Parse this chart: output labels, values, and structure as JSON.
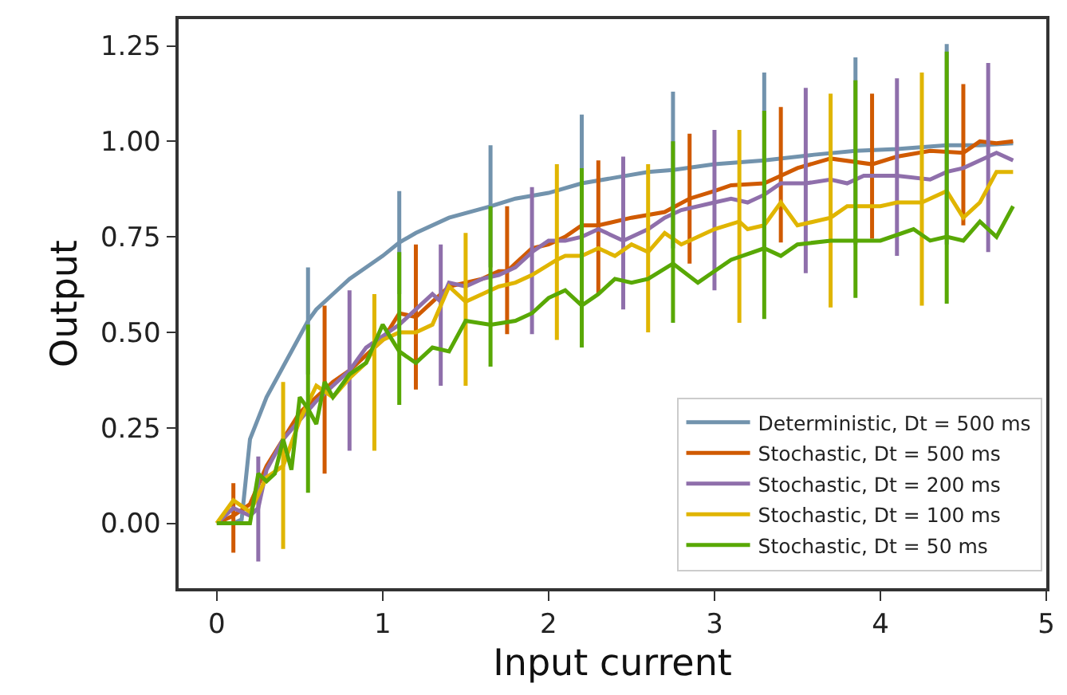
{
  "chart_data": {
    "type": "line",
    "xlabel": "Input current",
    "ylabel": "Output",
    "xlim": [
      -0.23,
      5.0
    ],
    "xticks": [
      0,
      1,
      2,
      3,
      4,
      5
    ],
    "ylim": [
      -0.17,
      1.32
    ],
    "yticks": [
      {
        "value": 0,
        "label": "0.00"
      },
      {
        "value": 0.25,
        "label": "0.25"
      },
      {
        "value": 0.5,
        "label": "0.50"
      },
      {
        "value": 0.75,
        "label": "0.75"
      },
      {
        "value": 1,
        "label": "1.00"
      },
      {
        "value": 1.25,
        "label": "1.25"
      }
    ],
    "legend": "bottom right",
    "marker": "none",
    "line_style": "solid",
    "series": [
      {
        "name": "Deterministic, Dt = 500 ms",
        "color": "#7293ad",
        "x": [
          0,
          0.1,
          0.15,
          0.2,
          0.3,
          0.4,
          0.5,
          0.55,
          0.6,
          0.7,
          0.8,
          0.9,
          1.0,
          1.1,
          1.2,
          1.4,
          1.65,
          1.8,
          2.0,
          2.2,
          2.4,
          2.6,
          2.75,
          3.0,
          3.3,
          3.6,
          3.85,
          4.1,
          4.4,
          4.6,
          4.8
        ],
        "values": [
          0,
          0,
          0.01,
          0.22,
          0.33,
          0.41,
          0.49,
          0.53,
          0.56,
          0.6,
          0.64,
          0.67,
          0.7,
          0.735,
          0.76,
          0.8,
          0.83,
          0.85,
          0.865,
          0.89,
          0.905,
          0.92,
          0.925,
          0.94,
          0.95,
          0.965,
          0.975,
          0.98,
          0.99,
          0.99,
          0.995
        ],
        "errors": [
          null,
          null,
          null,
          null,
          null,
          null,
          null,
          [
            0.39,
            0.67
          ],
          null,
          null,
          null,
          null,
          null,
          [
            0.6,
            0.87
          ],
          null,
          null,
          [
            0.67,
            0.99
          ],
          null,
          null,
          [
            0.68,
            1.07
          ],
          null,
          null,
          [
            0.72,
            1.13
          ],
          null,
          [
            0.72,
            1.18
          ],
          null,
          [
            0.73,
            1.22
          ],
          null,
          [
            0.73,
            1.255
          ],
          null,
          null
        ]
      },
      {
        "name": "Stochastic, Dt = 500 ms",
        "color": "#d05a00",
        "x": [
          0,
          0.1,
          0.2,
          0.3,
          0.4,
          0.5,
          0.6,
          0.65,
          0.7,
          0.8,
          0.9,
          1.0,
          1.1,
          1.2,
          1.3,
          1.4,
          1.5,
          1.6,
          1.7,
          1.75,
          1.8,
          1.9,
          2.0,
          2.1,
          2.2,
          2.3,
          2.5,
          2.7,
          2.85,
          3.0,
          3.1,
          3.3,
          3.4,
          3.5,
          3.7,
          3.95,
          4.1,
          4.3,
          4.5,
          4.6,
          4.7,
          4.8
        ],
        "values": [
          0,
          0.02,
          0.05,
          0.15,
          0.22,
          0.29,
          0.33,
          0.35,
          0.37,
          0.4,
          0.44,
          0.48,
          0.55,
          0.54,
          0.58,
          0.62,
          0.63,
          0.64,
          0.66,
          0.66,
          0.68,
          0.72,
          0.73,
          0.75,
          0.78,
          0.78,
          0.8,
          0.815,
          0.85,
          0.87,
          0.885,
          0.89,
          0.91,
          0.93,
          0.955,
          0.94,
          0.96,
          0.975,
          0.97,
          1.0,
          0.995,
          1.0
        ],
        "errors": [
          null,
          [
            -0.077,
            0.105
          ],
          null,
          null,
          null,
          null,
          null,
          [
            0.13,
            0.57
          ],
          null,
          null,
          null,
          null,
          null,
          [
            0.35,
            0.73
          ],
          null,
          null,
          null,
          null,
          null,
          [
            0.495,
            0.83
          ],
          null,
          null,
          null,
          null,
          null,
          [
            0.6,
            0.95
          ],
          null,
          null,
          [
            0.68,
            1.02
          ],
          null,
          null,
          null,
          [
            0.735,
            1.09
          ],
          null,
          null,
          [
            0.745,
            1.125
          ],
          null,
          null,
          [
            0.78,
            1.15
          ],
          null,
          null,
          null
        ]
      },
      {
        "name": "Stochastic, Dt = 200 ms",
        "color": "#8f6fab",
        "x": [
          0,
          0.1,
          0.2,
          0.25,
          0.3,
          0.4,
          0.5,
          0.6,
          0.7,
          0.8,
          0.9,
          1.0,
          1.1,
          1.2,
          1.3,
          1.35,
          1.4,
          1.5,
          1.6,
          1.7,
          1.8,
          1.9,
          2.0,
          2.1,
          2.2,
          2.3,
          2.45,
          2.6,
          2.7,
          2.8,
          3.0,
          3.1,
          3.2,
          3.3,
          3.4,
          3.55,
          3.7,
          3.8,
          3.9,
          4.1,
          4.3,
          4.4,
          4.5,
          4.65,
          4.7,
          4.8
        ],
        "values": [
          0,
          0.04,
          0.02,
          0.04,
          0.14,
          0.22,
          0.27,
          0.32,
          0.36,
          0.4,
          0.46,
          0.49,
          0.52,
          0.56,
          0.6,
          0.58,
          0.63,
          0.62,
          0.64,
          0.65,
          0.67,
          0.71,
          0.74,
          0.74,
          0.75,
          0.77,
          0.74,
          0.77,
          0.8,
          0.82,
          0.84,
          0.85,
          0.84,
          0.86,
          0.89,
          0.89,
          0.9,
          0.89,
          0.91,
          0.91,
          0.9,
          0.92,
          0.93,
          0.96,
          0.97,
          0.95
        ],
        "errors": [
          null,
          null,
          null,
          [
            -0.1,
            0.175
          ],
          null,
          null,
          null,
          null,
          null,
          [
            0.19,
            0.61
          ],
          null,
          null,
          null,
          null,
          null,
          [
            0.36,
            0.73
          ],
          null,
          null,
          null,
          null,
          null,
          [
            0.495,
            0.88
          ],
          null,
          null,
          null,
          null,
          [
            0.56,
            0.96
          ],
          null,
          null,
          null,
          [
            0.61,
            1.03
          ],
          null,
          null,
          null,
          null,
          [
            0.655,
            1.14
          ],
          null,
          null,
          null,
          [
            0.7,
            1.165
          ],
          null,
          null,
          null,
          [
            0.71,
            1.205
          ],
          null,
          null
        ]
      },
      {
        "name": "Stochastic, Dt = 100 ms",
        "color": "#e0b500",
        "x": [
          0,
          0.1,
          0.2,
          0.3,
          0.4,
          0.5,
          0.6,
          0.7,
          0.8,
          0.9,
          0.95,
          1.0,
          1.1,
          1.2,
          1.3,
          1.4,
          1.5,
          1.6,
          1.7,
          1.8,
          1.9,
          2.05,
          2.1,
          2.2,
          2.3,
          2.4,
          2.5,
          2.6,
          2.7,
          2.8,
          3.0,
          3.15,
          3.2,
          3.3,
          3.4,
          3.5,
          3.7,
          3.8,
          4.0,
          4.1,
          4.25,
          4.4,
          4.5,
          4.6,
          4.7,
          4.8
        ],
        "values": [
          0,
          0.06,
          0.03,
          0.12,
          0.15,
          0.27,
          0.36,
          0.33,
          0.38,
          0.42,
          0.46,
          0.48,
          0.5,
          0.5,
          0.52,
          0.62,
          0.58,
          0.6,
          0.62,
          0.63,
          0.65,
          0.69,
          0.7,
          0.7,
          0.72,
          0.7,
          0.73,
          0.71,
          0.76,
          0.73,
          0.77,
          0.79,
          0.77,
          0.78,
          0.84,
          0.78,
          0.8,
          0.83,
          0.83,
          0.84,
          0.84,
          0.87,
          0.8,
          0.84,
          0.92,
          0.92
        ],
        "errors": [
          null,
          null,
          null,
          null,
          [
            -0.067,
            0.37
          ],
          null,
          null,
          null,
          null,
          null,
          [
            0.19,
            0.6
          ],
          null,
          null,
          null,
          null,
          null,
          [
            0.36,
            0.76
          ],
          null,
          null,
          null,
          null,
          [
            0.48,
            0.94
          ],
          null,
          null,
          null,
          null,
          null,
          [
            0.5,
            0.94
          ],
          null,
          null,
          null,
          [
            0.525,
            1.03
          ],
          null,
          null,
          null,
          null,
          [
            0.565,
            1.125
          ],
          null,
          null,
          null,
          [
            0.57,
            1.18
          ],
          null,
          null,
          null,
          null,
          null
        ]
      },
      {
        "name": "Stochastic, Dt = 50 ms",
        "color": "#58a805",
        "x": [
          0,
          0.1,
          0.2,
          0.25,
          0.3,
          0.35,
          0.4,
          0.45,
          0.5,
          0.55,
          0.6,
          0.65,
          0.7,
          0.8,
          0.9,
          1.0,
          1.1,
          1.2,
          1.3,
          1.4,
          1.5,
          1.65,
          1.8,
          1.9,
          2.0,
          2.1,
          2.2,
          2.3,
          2.4,
          2.5,
          2.6,
          2.75,
          2.9,
          3.0,
          3.1,
          3.3,
          3.4,
          3.5,
          3.7,
          3.85,
          4.0,
          4.2,
          4.3,
          4.4,
          4.5,
          4.6,
          4.7,
          4.8
        ],
        "values": [
          0,
          0,
          0,
          0.13,
          0.11,
          0.13,
          0.22,
          0.14,
          0.33,
          0.3,
          0.26,
          0.37,
          0.33,
          0.39,
          0.42,
          0.52,
          0.45,
          0.42,
          0.46,
          0.45,
          0.53,
          0.52,
          0.53,
          0.55,
          0.59,
          0.61,
          0.57,
          0.6,
          0.64,
          0.63,
          0.64,
          0.68,
          0.63,
          0.66,
          0.69,
          0.72,
          0.7,
          0.73,
          0.74,
          0.74,
          0.74,
          0.77,
          0.74,
          0.75,
          0.74,
          0.79,
          0.75,
          0.83
        ],
        "errors": [
          null,
          null,
          null,
          null,
          null,
          null,
          null,
          null,
          null,
          [
            0.08,
            0.52
          ],
          null,
          null,
          null,
          null,
          null,
          null,
          [
            0.31,
            0.71
          ],
          null,
          null,
          null,
          null,
          [
            0.41,
            0.83
          ],
          null,
          null,
          null,
          null,
          [
            0.46,
            0.93
          ],
          null,
          null,
          null,
          null,
          [
            0.525,
            1.0
          ],
          null,
          null,
          null,
          [
            0.535,
            1.08
          ],
          null,
          null,
          null,
          [
            0.59,
            1.16
          ],
          null,
          null,
          null,
          [
            0.575,
            1.235
          ],
          null,
          null,
          null,
          null
        ]
      }
    ]
  }
}
